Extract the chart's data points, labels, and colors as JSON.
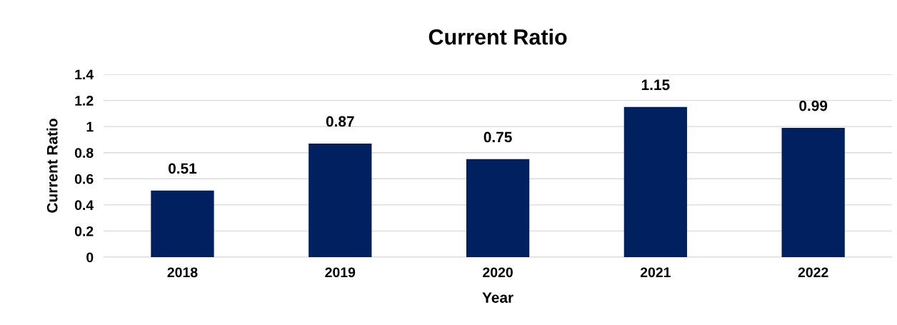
{
  "chart_data": {
    "type": "bar",
    "title": "Current Ratio",
    "xlabel": "Year",
    "ylabel": "Current Ratio",
    "categories": [
      "2018",
      "2019",
      "2020",
      "2021",
      "2022"
    ],
    "values": [
      0.51,
      0.87,
      0.75,
      1.15,
      0.99
    ],
    "color": "#002060",
    "ylim": [
      0,
      1.4
    ],
    "yticks": [
      0,
      0.2,
      0.4,
      0.6,
      0.8,
      1,
      1.2,
      1.4
    ],
    "grid": "y",
    "data_labels": true
  }
}
